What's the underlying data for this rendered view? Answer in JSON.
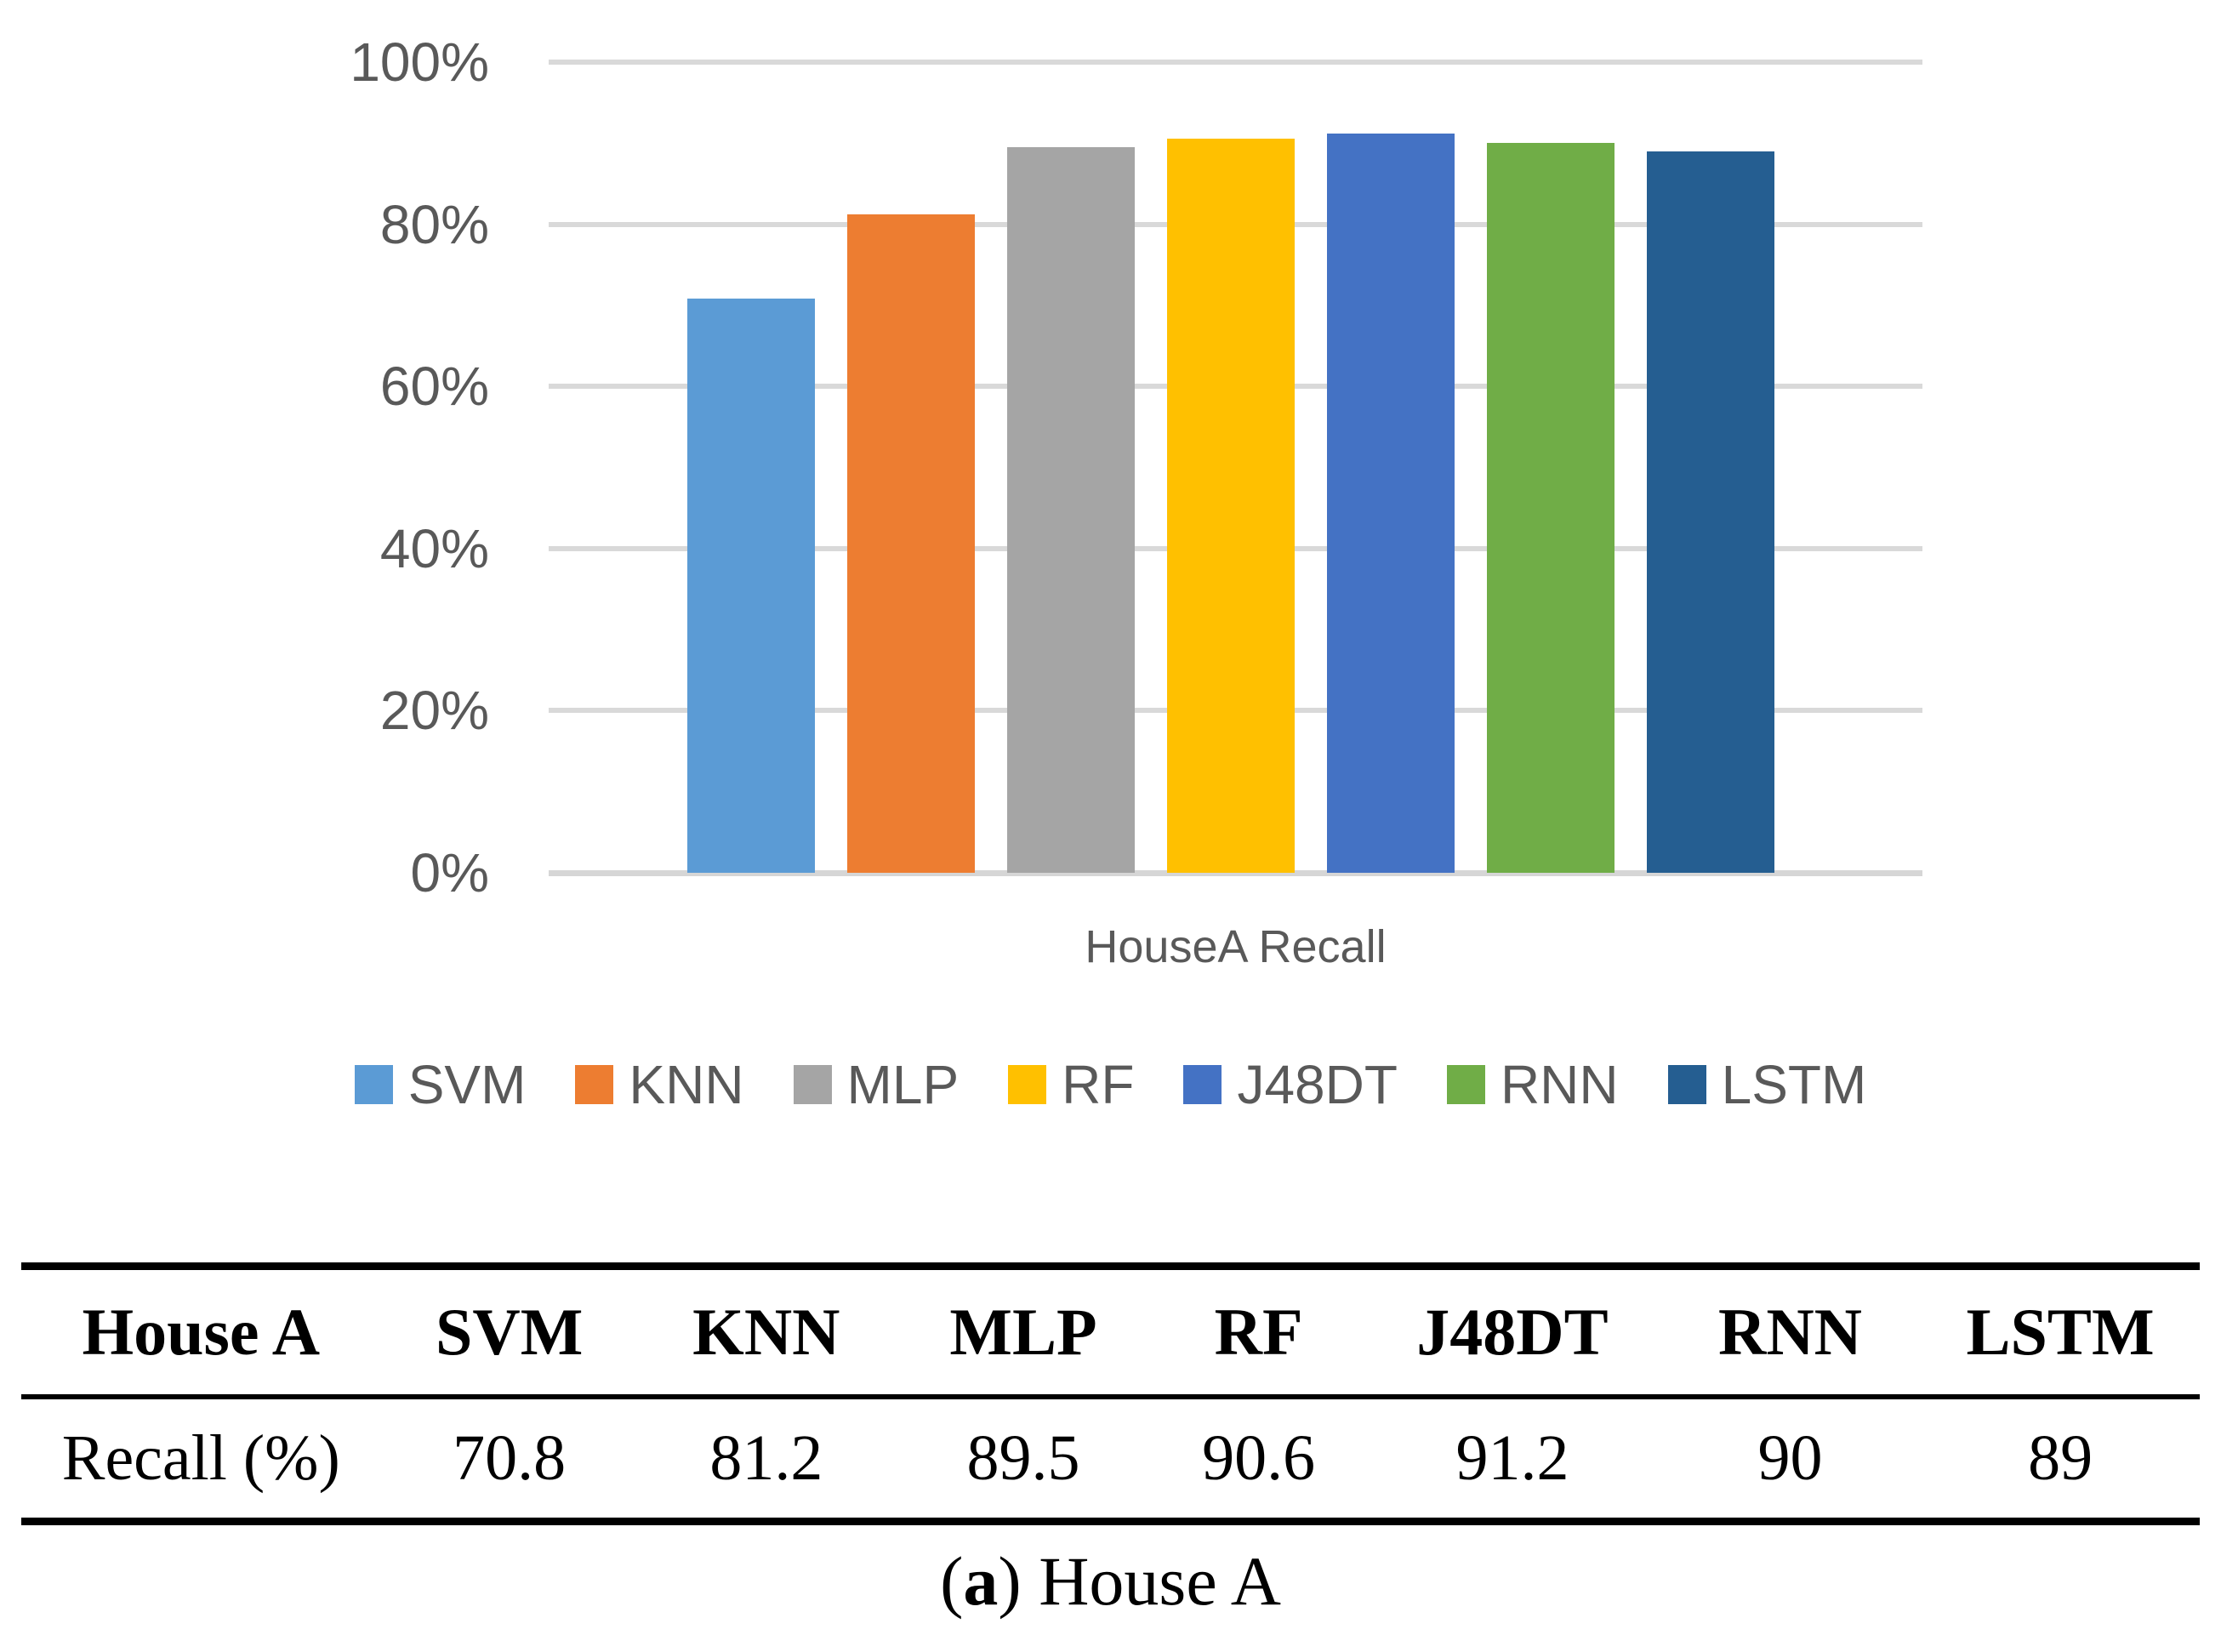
{
  "chart_data": {
    "type": "bar",
    "title": "",
    "xlabel": "HouseA Recall",
    "ylabel": "",
    "ylim": [
      0,
      100
    ],
    "ytick_labels": [
      "100%",
      "80%",
      "60%",
      "40%",
      "20%",
      "0%"
    ],
    "grid": true,
    "legend_position": "bottom",
    "categories": [
      "SVM",
      "KNN",
      "MLP",
      "RF",
      "J48DT",
      "RNN",
      "LSTM"
    ],
    "values": [
      70.8,
      81.2,
      89.5,
      90.6,
      91.2,
      90,
      89
    ],
    "colors": [
      "#5B9BD5",
      "#ED7D31",
      "#A5A5A5",
      "#FFC000",
      "#4472C4",
      "#70AD47",
      "#255E91"
    ]
  },
  "colors": {
    "axis_text": "#595959",
    "gridline": "#D9D9D9",
    "table_text": "#000000"
  },
  "table": {
    "header_row": [
      "House A",
      "SVM",
      "KNN",
      "MLP",
      "RF",
      "J48DT",
      "RNN",
      "LSTM"
    ],
    "data_rows": [
      [
        "Recall (%)",
        "70.8",
        "81.2",
        "89.5",
        "90.6",
        "91.2",
        "90",
        "89"
      ]
    ]
  },
  "caption": {
    "open_paren": "(",
    "letter": "a",
    "rest": ") House A"
  }
}
